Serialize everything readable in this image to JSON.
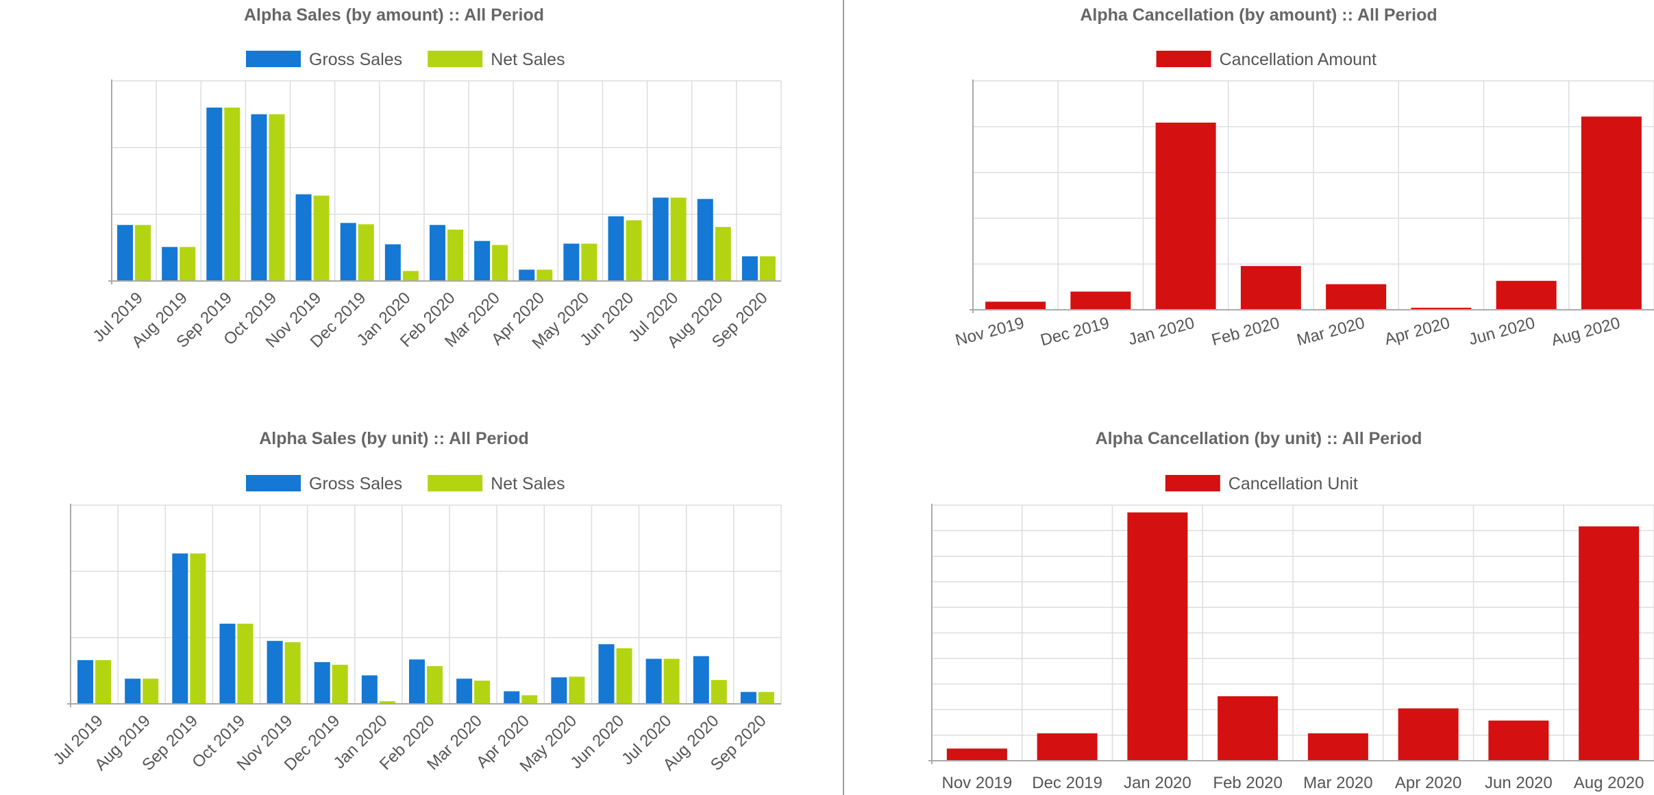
{
  "chart_data": [
    {
      "id": "sales-amount",
      "type": "bar",
      "title": "Alpha Sales (by amount) :: All Period",
      "legend_position": "top-center",
      "grid": true,
      "categories": [
        "Jul 2019",
        "Aug 2019",
        "Sep 2019",
        "Oct 2019",
        "Nov 2019",
        "Dec 2019",
        "Jan 2020",
        "Feb 2020",
        "Mar 2020",
        "Apr 2020",
        "May 2020",
        "Jun 2020",
        "Jul 2020",
        "Aug 2020",
        "Sep 2020"
      ],
      "series": [
        {
          "name": "Gross Sales",
          "color": "#1478d4",
          "values": [
            84,
            51,
            260,
            250,
            130,
            87,
            55,
            84,
            60,
            17,
            56,
            97,
            125,
            123,
            37
          ]
        },
        {
          "name": "Net Sales",
          "color": "#b3d511",
          "values": [
            84,
            51,
            260,
            250,
            128,
            85,
            15,
            77,
            54,
            17,
            56,
            91,
            125,
            81,
            37
          ]
        }
      ],
      "ylim": [
        0,
        300
      ],
      "tick_rotation": -45,
      "xlabel": "",
      "ylabel": ""
    },
    {
      "id": "cancel-amount",
      "type": "bar",
      "title": "Alpha Cancellation (by amount) :: All Period",
      "legend_position": "top-center",
      "grid": true,
      "categories": [
        "Nov 2019",
        "Dec 2019",
        "Jan 2020",
        "Feb 2020",
        "Mar 2020",
        "Apr 2020",
        "Jun 2020",
        "Aug 2020"
      ],
      "series": [
        {
          "name": "Cancellation Amount",
          "color": "#d41010",
          "values": [
            12,
            27,
            278,
            65,
            38,
            3,
            43,
            287
          ]
        }
      ],
      "ylim": [
        0,
        340
      ],
      "tick_rotation": -15,
      "xlabel": "",
      "ylabel": ""
    },
    {
      "id": "sales-unit",
      "type": "bar",
      "title": "Alpha Sales (by unit) :: All Period",
      "legend_position": "top-center",
      "grid": true,
      "categories": [
        "Jul 2019",
        "Aug 2019",
        "Sep 2019",
        "Oct 2019",
        "Nov 2019",
        "Dec 2019",
        "Jan 2020",
        "Feb 2020",
        "Mar 2020",
        "Apr 2020",
        "May 2020",
        "Jun 2020",
        "Jul 2020",
        "Aug 2020",
        "Sep 2020"
      ],
      "series": [
        {
          "name": "Gross Sales",
          "color": "#1478d4",
          "values": [
            66,
            38,
            227,
            121,
            95,
            63,
            43,
            67,
            38,
            19,
            40,
            90,
            68,
            72,
            18
          ]
        },
        {
          "name": "Net Sales",
          "color": "#b3d511",
          "values": [
            66,
            38,
            227,
            121,
            93,
            59,
            4,
            57,
            35,
            13,
            41,
            84,
            68,
            36,
            18
          ]
        }
      ],
      "ylim": [
        0,
        300
      ],
      "tick_rotation": -45,
      "xlabel": "",
      "ylabel": ""
    },
    {
      "id": "cancel-unit",
      "type": "bar",
      "title": "Alpha Cancellation (by unit) :: All Period",
      "legend_position": "top-center",
      "grid": true,
      "categories": [
        "Nov 2019",
        "Dec 2019",
        "Jan 2020",
        "Feb 2020",
        "Mar 2020",
        "Apr 2020",
        "Jun 2020",
        "Aug 2020"
      ],
      "series": [
        {
          "name": "Cancellation Unit",
          "color": "#d41010",
          "values": [
            2,
            4.5,
            40.8,
            10.6,
            4.5,
            8.6,
            6.6,
            38.5
          ]
        }
      ],
      "ylim": [
        0,
        42
      ],
      "tick_rotation": 0,
      "xlabel": "",
      "ylabel": ""
    }
  ]
}
